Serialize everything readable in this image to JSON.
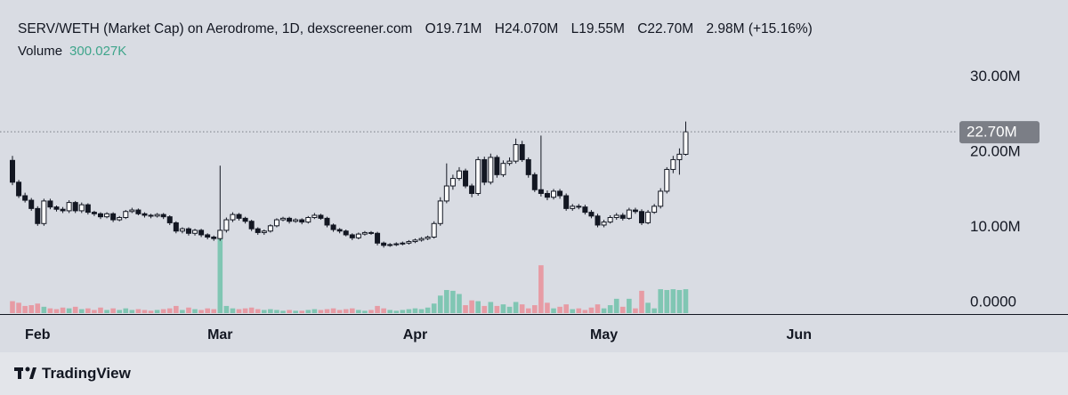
{
  "chart_data": {
    "type": "candlestick",
    "title": "SERV/WETH (Market Cap) on Aerodrome, 1D, dexscreener.com",
    "legend_values": [
      "O19.71M",
      "H24.070M",
      "L19.55M",
      "C22.70M",
      "2.98M (+15.16%)"
    ],
    "volume_label": "Volume",
    "volume_value": "300.027K",
    "brand": "TradingView",
    "categories": [
      null,
      null,
      null,
      null,
      "Feb",
      null,
      null,
      null,
      null,
      null,
      null,
      null,
      null,
      null,
      null,
      null,
      null,
      null,
      null,
      null,
      null,
      null,
      null,
      null,
      null,
      null,
      null,
      null,
      null,
      null,
      null,
      null,
      null,
      "Mar",
      null,
      null,
      null,
      null,
      null,
      null,
      null,
      null,
      null,
      null,
      null,
      null,
      null,
      null,
      null,
      null,
      null,
      null,
      null,
      null,
      null,
      null,
      null,
      null,
      null,
      null,
      null,
      null,
      null,
      null,
      "Apr",
      null,
      null,
      null,
      null,
      null,
      null,
      null,
      null,
      null,
      null,
      null,
      null,
      null,
      null,
      null,
      null,
      null,
      null,
      null,
      null,
      null,
      null,
      null,
      null,
      null,
      null,
      null,
      null,
      null,
      "May",
      null,
      null,
      null,
      null,
      null,
      null,
      null,
      null,
      null,
      null,
      null,
      null,
      null,
      null,
      null,
      null,
      null,
      null,
      null,
      null,
      null,
      null,
      null,
      null,
      null,
      null,
      null,
      null,
      null,
      null,
      "Jun"
    ],
    "open": [
      18.9,
      16.0,
      14.2,
      13.6,
      12.5,
      10.5,
      13.5,
      12.7,
      12.4,
      12.2,
      13.3,
      12.2,
      13.0,
      12.0,
      11.8,
      11.4,
      11.8,
      11.0,
      11.3,
      12.1,
      12.3,
      11.8,
      11.6,
      11.5,
      11.7,
      11.4,
      10.6,
      9.5,
      9.8,
      9.2,
      9.6,
      9.0,
      8.7,
      8.5,
      9.6,
      11.0,
      11.7,
      11.2,
      10.8,
      9.8,
      9.3,
      9.5,
      10.2,
      11.0,
      11.2,
      10.8,
      11.0,
      10.7,
      11.3,
      11.6,
      11.2,
      10.3,
      9.7,
      9.5,
      9.0,
      8.6,
      9.1,
      9.3,
      9.2,
      7.9,
      7.6,
      7.7,
      7.8,
      7.9,
      8.1,
      8.3,
      8.5,
      8.7,
      10.5,
      13.5,
      15.5,
      16.5,
      17.5,
      15.5,
      14.5,
      19.0,
      16.0,
      19.3,
      17.0,
      18.5,
      18.8,
      21.0,
      19.0,
      17.0,
      15.0,
      14.5,
      14.0,
      14.8,
      14.2,
      12.5,
      12.8,
      12.7,
      12.0,
      11.5,
      10.3,
      10.7,
      11.3,
      11.6,
      11.2,
      12.3,
      12.1,
      10.6,
      12.0,
      12.8,
      14.8,
      17.7,
      19.0,
      19.71,
      null,
      null,
      null,
      null,
      null,
      null,
      null,
      null,
      null,
      null,
      null,
      null,
      null,
      null,
      null,
      null,
      null,
      null
    ],
    "high": [
      19.5,
      16.3,
      14.6,
      13.9,
      12.8,
      13.8,
      13.8,
      12.9,
      12.7,
      13.6,
      13.5,
      13.3,
      13.2,
      12.2,
      12.0,
      12.0,
      12.0,
      11.5,
      12.3,
      12.6,
      12.5,
      12.0,
      11.8,
      11.9,
      11.9,
      11.6,
      10.8,
      10.0,
      10.0,
      9.8,
      9.8,
      9.2,
      8.9,
      18.2,
      11.3,
      12.0,
      11.9,
      11.4,
      11.0,
      10.0,
      9.7,
      10.4,
      11.2,
      11.4,
      11.4,
      11.2,
      11.2,
      11.5,
      11.9,
      11.8,
      11.4,
      10.5,
      9.9,
      9.7,
      9.2,
      9.3,
      9.5,
      9.5,
      9.4,
      8.1,
      7.9,
      8.0,
      8.1,
      8.3,
      8.5,
      8.7,
      8.9,
      10.8,
      14.0,
      18.5,
      17.0,
      18.0,
      17.8,
      15.8,
      19.4,
      19.4,
      19.8,
      19.6,
      18.9,
      19.3,
      21.8,
      21.5,
      19.3,
      17.3,
      22.2,
      14.9,
      15.1,
      15.1,
      14.5,
      13.1,
      13.1,
      13.0,
      12.3,
      11.8,
      11.0,
      11.6,
      11.9,
      11.9,
      12.6,
      12.6,
      12.4,
      12.3,
      13.1,
      15.2,
      18.0,
      19.5,
      20.5,
      24.07,
      null,
      null,
      null,
      null,
      null,
      null,
      null,
      null,
      null,
      null,
      null,
      null,
      null,
      null,
      null,
      null,
      null,
      null
    ],
    "low": [
      15.6,
      13.9,
      13.3,
      12.2,
      10.2,
      10.2,
      12.4,
      12.1,
      11.9,
      11.9,
      11.9,
      11.9,
      11.7,
      11.5,
      11.1,
      11.2,
      10.7,
      10.8,
      11.1,
      11.9,
      11.6,
      11.3,
      11.2,
      11.3,
      11.1,
      10.3,
      9.2,
      9.2,
      8.9,
      8.9,
      8.7,
      8.4,
      8.2,
      8.2,
      9.3,
      10.7,
      10.9,
      10.5,
      9.5,
      9.0,
      9.0,
      9.3,
      10.0,
      10.8,
      10.5,
      10.6,
      10.4,
      10.5,
      11.1,
      11.0,
      10.0,
      9.4,
      9.2,
      8.8,
      8.3,
      8.4,
      8.9,
      9.0,
      7.6,
      7.3,
      7.4,
      7.5,
      7.6,
      7.7,
      7.9,
      8.1,
      8.3,
      8.5,
      10.2,
      13.2,
      15.0,
      16.2,
      15.2,
      14.0,
      14.2,
      15.6,
      15.7,
      16.6,
      16.7,
      18.2,
      18.5,
      18.7,
      16.6,
      14.7,
      14.1,
      13.6,
      13.7,
      13.8,
      12.2,
      12.2,
      12.4,
      11.7,
      11.2,
      10.0,
      10.0,
      10.5,
      11.0,
      10.9,
      11.0,
      11.8,
      10.3,
      10.4,
      11.8,
      12.5,
      14.5,
      17.2,
      17.0,
      19.55,
      null,
      null,
      null,
      null,
      null,
      null,
      null,
      null,
      null,
      null,
      null,
      null,
      null,
      null,
      null,
      null,
      null,
      null
    ],
    "close": [
      16.0,
      14.2,
      13.6,
      12.5,
      10.5,
      13.5,
      12.7,
      12.4,
      12.2,
      13.3,
      12.2,
      13.0,
      12.0,
      11.8,
      11.4,
      11.8,
      11.0,
      11.3,
      12.1,
      12.3,
      11.8,
      11.6,
      11.5,
      11.7,
      11.4,
      10.6,
      9.5,
      9.8,
      9.2,
      9.6,
      9.0,
      8.7,
      8.5,
      9.6,
      11.0,
      11.7,
      11.2,
      10.8,
      9.8,
      9.3,
      9.5,
      10.2,
      11.0,
      11.2,
      10.8,
      11.0,
      10.7,
      11.3,
      11.6,
      11.2,
      10.3,
      9.7,
      9.5,
      9.0,
      8.6,
      9.1,
      9.3,
      9.2,
      7.9,
      7.6,
      7.7,
      7.8,
      7.9,
      8.1,
      8.3,
      8.5,
      8.7,
      10.5,
      13.5,
      15.5,
      16.5,
      17.5,
      15.5,
      14.5,
      19.0,
      16.0,
      19.3,
      17.0,
      18.5,
      18.8,
      21.0,
      19.0,
      17.0,
      15.0,
      14.5,
      14.0,
      14.8,
      14.2,
      12.5,
      12.8,
      12.7,
      12.0,
      11.5,
      10.3,
      10.7,
      11.3,
      11.6,
      11.2,
      12.3,
      12.1,
      10.6,
      12.0,
      12.8,
      14.8,
      17.7,
      19.0,
      19.72,
      22.7,
      null,
      null,
      null,
      null,
      null,
      null,
      null,
      null,
      null,
      null,
      null,
      null,
      null,
      null,
      null,
      null,
      null,
      null
    ],
    "volume": [
      150,
      130,
      90,
      100,
      120,
      80,
      60,
      50,
      70,
      60,
      80,
      50,
      60,
      40,
      70,
      40,
      60,
      40,
      60,
      40,
      50,
      40,
      30,
      40,
      50,
      60,
      90,
      40,
      70,
      50,
      40,
      60,
      50,
      930,
      90,
      60,
      50,
      60,
      70,
      50,
      40,
      50,
      40,
      30,
      40,
      30,
      30,
      40,
      50,
      40,
      50,
      60,
      40,
      50,
      60,
      40,
      30,
      40,
      90,
      60,
      40,
      30,
      40,
      50,
      60,
      50,
      70,
      120,
      220,
      290,
      280,
      240,
      100,
      160,
      150,
      90,
      140,
      90,
      110,
      80,
      140,
      110,
      60,
      100,
      600,
      130,
      60,
      80,
      110,
      50,
      60,
      40,
      70,
      110,
      60,
      100,
      180,
      80,
      180,
      60,
      280,
      130,
      60,
      300,
      290,
      300,
      290,
      300.027,
      null,
      null,
      null,
      null,
      null,
      null,
      null,
      null,
      null,
      null,
      null,
      null,
      null,
      null,
      null,
      null,
      null,
      null
    ],
    "ylim": [
      -1.42,
      37.87
    ],
    "yticks": [
      {
        "value": 0,
        "label": "0.0000"
      },
      {
        "value": 10,
        "label": "10.00M"
      },
      {
        "value": 20,
        "label": "20.00M"
      },
      {
        "value": 30,
        "label": "30.00M"
      }
    ],
    "y2lim": [
      0,
      3700
    ],
    "last_price": {
      "value": 22.7,
      "label": "22.70M"
    },
    "up_color": "#ffffff",
    "down_color": "#131722",
    "volume_up_color": "#80c6b3",
    "volume_down_color": "#e79ba4",
    "volume_value_color": "#3fa58b"
  }
}
